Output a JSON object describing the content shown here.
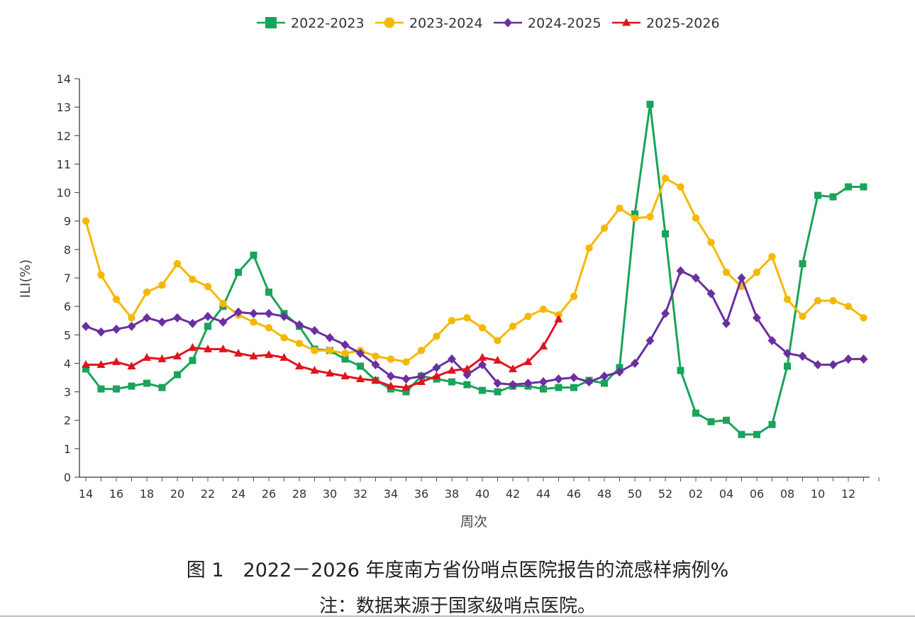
{
  "chart_data": {
    "type": "line",
    "ylabel": "ILI(%)",
    "xlabel": "周次",
    "ylim": [
      0,
      14
    ],
    "yticks": [
      0,
      1,
      2,
      3,
      4,
      5,
      6,
      7,
      8,
      9,
      10,
      11,
      12,
      13,
      14
    ],
    "xtick_labels": [
      "14",
      "16",
      "18",
      "20",
      "22",
      "24",
      "26",
      "28",
      "30",
      "32",
      "34",
      "36",
      "38",
      "40",
      "42",
      "44",
      "46",
      "48",
      "50",
      "52",
      "02",
      "04",
      "06",
      "08",
      "10",
      "12"
    ],
    "grid": false,
    "legend_position": "top-center",
    "weeks": [
      "14",
      "15",
      "16",
      "17",
      "18",
      "19",
      "20",
      "21",
      "22",
      "23",
      "24",
      "25",
      "26",
      "27",
      "28",
      "29",
      "30",
      "31",
      "32",
      "33",
      "34",
      "35",
      "36",
      "37",
      "38",
      "39",
      "40",
      "41",
      "42",
      "43",
      "44",
      "45",
      "46",
      "47",
      "48",
      "49",
      "50",
      "51",
      "52",
      "53",
      "01",
      "02",
      "03",
      "04",
      "05",
      "06",
      "07",
      "08",
      "09",
      "10",
      "11",
      "12",
      "13"
    ],
    "series": [
      {
        "name": "2022-2023",
        "color": "#1aa35a",
        "marker": "square",
        "values": [
          3.8,
          3.1,
          3.1,
          3.2,
          3.3,
          3.15,
          3.6,
          4.1,
          5.3,
          6.0,
          7.2,
          7.8,
          6.5,
          5.75,
          5.3,
          4.5,
          4.45,
          4.15,
          3.9,
          3.4,
          3.1,
          3.0,
          3.55,
          3.45,
          3.35,
          3.25,
          3.05,
          3.0,
          3.2,
          3.2,
          3.1,
          3.15,
          3.15,
          3.4,
          3.3,
          3.85,
          9.25,
          13.1,
          8.55,
          3.75,
          2.25,
          1.95,
          2.0,
          1.5,
          1.5,
          1.85,
          3.9,
          7.5,
          9.9,
          9.85,
          10.2,
          10.2
        ]
      },
      {
        "name": "2023-2024",
        "color": "#f5b800",
        "marker": "circle",
        "values": [
          9.0,
          7.1,
          6.25,
          5.6,
          6.5,
          6.75,
          7.5,
          6.95,
          6.7,
          6.1,
          5.7,
          5.45,
          5.25,
          4.9,
          4.7,
          4.45,
          4.45,
          4.35,
          4.45,
          4.25,
          4.15,
          4.05,
          4.45,
          4.95,
          5.5,
          5.6,
          5.25,
          4.8,
          5.3,
          5.65,
          5.9,
          5.7,
          6.35,
          8.05,
          8.75,
          9.45,
          9.1,
          9.15,
          10.5,
          10.2,
          9.1,
          8.25,
          7.2,
          6.7,
          7.2,
          7.75,
          6.25,
          5.65,
          6.2,
          6.2,
          6.0,
          5.6
        ]
      },
      {
        "name": "2024-2025",
        "color": "#6b2fa0",
        "marker": "diamond",
        "values": [
          5.3,
          5.1,
          5.2,
          5.3,
          5.6,
          5.45,
          5.6,
          5.4,
          5.65,
          5.45,
          5.8,
          5.75,
          5.75,
          5.65,
          5.35,
          5.15,
          4.9,
          4.65,
          4.35,
          3.95,
          3.55,
          3.45,
          3.55,
          3.85,
          4.15,
          3.6,
          3.95,
          3.3,
          3.25,
          3.3,
          3.35,
          3.45,
          3.5,
          3.35,
          3.55,
          3.7,
          4.0,
          4.8,
          5.75,
          7.25,
          7.0,
          6.45,
          5.4,
          7.0,
          5.6,
          4.8,
          4.35,
          4.25,
          3.95,
          3.95,
          4.15,
          4.15
        ]
      },
      {
        "name": "2025-2026",
        "color": "#e0141e",
        "marker": "triangle",
        "values": [
          3.95,
          3.95,
          4.05,
          3.9,
          4.2,
          4.15,
          4.25,
          4.55,
          4.5,
          4.5,
          4.35,
          4.25,
          4.3,
          4.2,
          3.9,
          3.75,
          3.65,
          3.55,
          3.45,
          3.4,
          3.2,
          3.15,
          3.35,
          3.55,
          3.75,
          3.8,
          4.2,
          4.1,
          3.8,
          4.05,
          4.6,
          5.55
        ]
      }
    ]
  },
  "caption": {
    "title": "图 1　2022－2026 年度南方省份哨点医院报告的流感样病例%",
    "note": "注：数据来源于国家级哨点医院。"
  }
}
